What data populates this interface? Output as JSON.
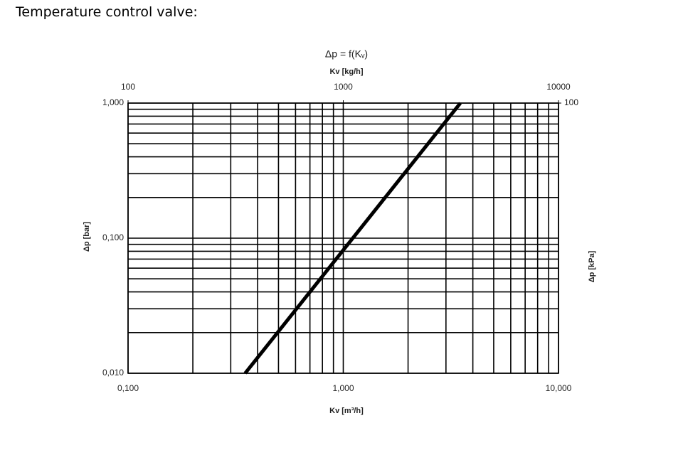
{
  "header": {
    "title": "Temperature control valve:"
  },
  "chart_data": {
    "type": "line",
    "title": "Δp = f(Kᵥ)",
    "x_label": "Kv [m³/h]",
    "x2_label": "Kv [kg/h]",
    "y_label": "Δp [bar]",
    "y2_label": "Δp [kPa]",
    "x": [
      0.35,
      3.5
    ],
    "values": [
      0.01,
      1
    ],
    "color": "#000000",
    "xlim": [
      0.1,
      10
    ],
    "xticks": [
      {
        "value": 0.1,
        "label": "0,100"
      },
      {
        "value": 1,
        "label": "1,000"
      },
      {
        "value": 10,
        "label": "10,000"
      }
    ],
    "x2lim": [
      100,
      10000
    ],
    "x2ticks": [
      100,
      1000,
      10000
    ],
    "ylim": [
      0.01,
      1
    ],
    "yticks": [
      {
        "value": 0.01,
        "label": "0,010"
      },
      {
        "value": 0.1,
        "label": "0,100"
      },
      {
        "value": 1,
        "label": "1,000"
      }
    ],
    "y2lim": [
      1,
      100
    ],
    "y2ticks": [
      100
    ],
    "xscale": "log",
    "yscale": "log",
    "grid": true,
    "minor_grid": true
  }
}
